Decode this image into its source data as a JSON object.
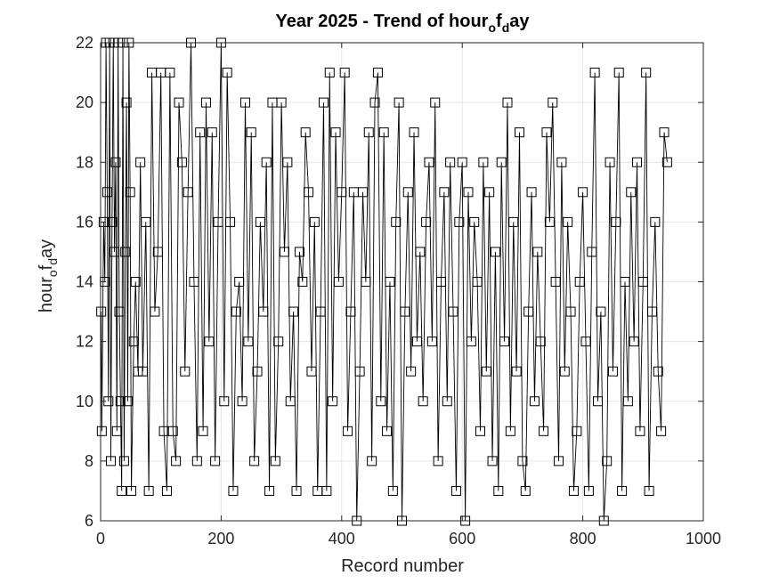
{
  "chart_data": {
    "type": "line",
    "title": "Year 2025 - Trend of hour_of_day",
    "title_parts": {
      "pre": "Year 2025 - Trend of hour",
      "sub1": "o",
      "mid": "f",
      "sub2": "d",
      "post": "ay"
    },
    "xlabel": "Record number",
    "ylabel": "hour_of_day",
    "ylabel_parts": {
      "pre": "hour",
      "sub1": "o",
      "mid": "f",
      "sub2": "d",
      "post": "ay"
    },
    "xlim": [
      0,
      1000
    ],
    "ylim": [
      6,
      22
    ],
    "xticks": [
      0,
      200,
      400,
      600,
      800,
      1000
    ],
    "yticks": [
      6,
      8,
      10,
      12,
      14,
      16,
      18,
      20,
      22
    ],
    "grid": true,
    "marker": "square",
    "series_color": "#000000",
    "n_points": 940,
    "sample_points": [
      {
        "x": 1,
        "y": 13
      },
      {
        "x": 2,
        "y": 9
      },
      {
        "x": 5,
        "y": 16
      },
      {
        "x": 7,
        "y": 14
      },
      {
        "x": 9,
        "y": 22
      },
      {
        "x": 11,
        "y": 17
      },
      {
        "x": 13,
        "y": 10
      },
      {
        "x": 15,
        "y": 22
      },
      {
        "x": 17,
        "y": 8
      },
      {
        "x": 19,
        "y": 16
      },
      {
        "x": 21,
        "y": 22
      },
      {
        "x": 23,
        "y": 15
      },
      {
        "x": 25,
        "y": 18
      },
      {
        "x": 27,
        "y": 9
      },
      {
        "x": 29,
        "y": 22
      },
      {
        "x": 31,
        "y": 13
      },
      {
        "x": 33,
        "y": 10
      },
      {
        "x": 35,
        "y": 7
      },
      {
        "x": 37,
        "y": 22
      },
      {
        "x": 39,
        "y": 8
      },
      {
        "x": 41,
        "y": 15
      },
      {
        "x": 43,
        "y": 20
      },
      {
        "x": 45,
        "y": 10
      },
      {
        "x": 47,
        "y": 22
      },
      {
        "x": 49,
        "y": 17
      },
      {
        "x": 51,
        "y": 7
      },
      {
        "x": 55,
        "y": 12
      },
      {
        "x": 58,
        "y": 14
      },
      {
        "x": 62,
        "y": 11
      },
      {
        "x": 66,
        "y": 18
      },
      {
        "x": 70,
        "y": 11
      },
      {
        "x": 75,
        "y": 16
      },
      {
        "x": 80,
        "y": 7
      },
      {
        "x": 85,
        "y": 21
      },
      {
        "x": 90,
        "y": 13
      },
      {
        "x": 95,
        "y": 15
      },
      {
        "x": 100,
        "y": 21
      },
      {
        "x": 105,
        "y": 9
      },
      {
        "x": 110,
        "y": 7
      },
      {
        "x": 115,
        "y": 21
      },
      {
        "x": 120,
        "y": 9
      },
      {
        "x": 125,
        "y": 8
      },
      {
        "x": 130,
        "y": 20
      },
      {
        "x": 135,
        "y": 18
      },
      {
        "x": 140,
        "y": 11
      },
      {
        "x": 145,
        "y": 17
      },
      {
        "x": 150,
        "y": 22
      },
      {
        "x": 155,
        "y": 14
      },
      {
        "x": 160,
        "y": 8
      },
      {
        "x": 165,
        "y": 19
      },
      {
        "x": 170,
        "y": 9
      },
      {
        "x": 175,
        "y": 20
      },
      {
        "x": 180,
        "y": 12
      },
      {
        "x": 185,
        "y": 19
      },
      {
        "x": 190,
        "y": 8
      },
      {
        "x": 195,
        "y": 16
      },
      {
        "x": 200,
        "y": 22
      },
      {
        "x": 205,
        "y": 10
      },
      {
        "x": 210,
        "y": 21
      },
      {
        "x": 215,
        "y": 16
      },
      {
        "x": 220,
        "y": 7
      },
      {
        "x": 225,
        "y": 13
      },
      {
        "x": 230,
        "y": 14
      },
      {
        "x": 235,
        "y": 10
      },
      {
        "x": 240,
        "y": 20
      },
      {
        "x": 245,
        "y": 12
      },
      {
        "x": 250,
        "y": 19
      },
      {
        "x": 255,
        "y": 8
      },
      {
        "x": 260,
        "y": 11
      },
      {
        "x": 265,
        "y": 16
      },
      {
        "x": 270,
        "y": 13
      },
      {
        "x": 275,
        "y": 18
      },
      {
        "x": 280,
        "y": 7
      },
      {
        "x": 285,
        "y": 20
      },
      {
        "x": 290,
        "y": 8
      },
      {
        "x": 295,
        "y": 12
      },
      {
        "x": 300,
        "y": 20
      },
      {
        "x": 305,
        "y": 15
      },
      {
        "x": 310,
        "y": 18
      },
      {
        "x": 315,
        "y": 10
      },
      {
        "x": 320,
        "y": 13
      },
      {
        "x": 325,
        "y": 7
      },
      {
        "x": 330,
        "y": 15
      },
      {
        "x": 335,
        "y": 14
      },
      {
        "x": 340,
        "y": 19
      },
      {
        "x": 345,
        "y": 17
      },
      {
        "x": 350,
        "y": 11
      },
      {
        "x": 355,
        "y": 16
      },
      {
        "x": 360,
        "y": 7
      },
      {
        "x": 365,
        "y": 13
      },
      {
        "x": 370,
        "y": 20
      },
      {
        "x": 375,
        "y": 7
      },
      {
        "x": 380,
        "y": 21
      },
      {
        "x": 385,
        "y": 10
      },
      {
        "x": 390,
        "y": 19
      },
      {
        "x": 395,
        "y": 14
      },
      {
        "x": 400,
        "y": 17
      },
      {
        "x": 405,
        "y": 21
      },
      {
        "x": 410,
        "y": 9
      },
      {
        "x": 415,
        "y": 13
      },
      {
        "x": 420,
        "y": 17
      },
      {
        "x": 425,
        "y": 6
      },
      {
        "x": 430,
        "y": 11
      },
      {
        "x": 435,
        "y": 17
      },
      {
        "x": 440,
        "y": 14
      },
      {
        "x": 445,
        "y": 19
      },
      {
        "x": 450,
        "y": 8
      },
      {
        "x": 455,
        "y": 20
      },
      {
        "x": 460,
        "y": 21
      },
      {
        "x": 465,
        "y": 10
      },
      {
        "x": 470,
        "y": 19
      },
      {
        "x": 475,
        "y": 9
      },
      {
        "x": 480,
        "y": 14
      },
      {
        "x": 485,
        "y": 7
      },
      {
        "x": 490,
        "y": 16
      },
      {
        "x": 495,
        "y": 20
      },
      {
        "x": 500,
        "y": 6
      },
      {
        "x": 505,
        "y": 13
      },
      {
        "x": 510,
        "y": 17
      },
      {
        "x": 515,
        "y": 11
      },
      {
        "x": 520,
        "y": 19
      },
      {
        "x": 525,
        "y": 12
      },
      {
        "x": 530,
        "y": 15
      },
      {
        "x": 535,
        "y": 10
      },
      {
        "x": 540,
        "y": 16
      },
      {
        "x": 545,
        "y": 18
      },
      {
        "x": 550,
        "y": 12
      },
      {
        "x": 555,
        "y": 20
      },
      {
        "x": 560,
        "y": 8
      },
      {
        "x": 565,
        "y": 14
      },
      {
        "x": 570,
        "y": 17
      },
      {
        "x": 575,
        "y": 10
      },
      {
        "x": 580,
        "y": 18
      },
      {
        "x": 585,
        "y": 13
      },
      {
        "x": 590,
        "y": 7
      },
      {
        "x": 595,
        "y": 16
      },
      {
        "x": 600,
        "y": 18
      },
      {
        "x": 605,
        "y": 6
      },
      {
        "x": 610,
        "y": 17
      },
      {
        "x": 615,
        "y": 12
      },
      {
        "x": 620,
        "y": 16
      },
      {
        "x": 625,
        "y": 14
      },
      {
        "x": 630,
        "y": 9
      },
      {
        "x": 635,
        "y": 18
      },
      {
        "x": 640,
        "y": 11
      },
      {
        "x": 645,
        "y": 17
      },
      {
        "x": 650,
        "y": 8
      },
      {
        "x": 655,
        "y": 15
      },
      {
        "x": 660,
        "y": 7
      },
      {
        "x": 665,
        "y": 18
      },
      {
        "x": 670,
        "y": 12
      },
      {
        "x": 675,
        "y": 20
      },
      {
        "x": 680,
        "y": 9
      },
      {
        "x": 685,
        "y": 16
      },
      {
        "x": 690,
        "y": 11
      },
      {
        "x": 695,
        "y": 19
      },
      {
        "x": 700,
        "y": 8
      },
      {
        "x": 705,
        "y": 7
      },
      {
        "x": 710,
        "y": 13
      },
      {
        "x": 715,
        "y": 17
      },
      {
        "x": 720,
        "y": 10
      },
      {
        "x": 725,
        "y": 15
      },
      {
        "x": 730,
        "y": 12
      },
      {
        "x": 735,
        "y": 9
      },
      {
        "x": 740,
        "y": 19
      },
      {
        "x": 745,
        "y": 16
      },
      {
        "x": 750,
        "y": 20
      },
      {
        "x": 755,
        "y": 14
      },
      {
        "x": 760,
        "y": 8
      },
      {
        "x": 765,
        "y": 18
      },
      {
        "x": 770,
        "y": 11
      },
      {
        "x": 775,
        "y": 16
      },
      {
        "x": 780,
        "y": 13
      },
      {
        "x": 785,
        "y": 7
      },
      {
        "x": 790,
        "y": 9
      },
      {
        "x": 795,
        "y": 14
      },
      {
        "x": 800,
        "y": 17
      },
      {
        "x": 805,
        "y": 12
      },
      {
        "x": 810,
        "y": 7
      },
      {
        "x": 815,
        "y": 15
      },
      {
        "x": 820,
        "y": 21
      },
      {
        "x": 825,
        "y": 10
      },
      {
        "x": 830,
        "y": 13
      },
      {
        "x": 835,
        "y": 6
      },
      {
        "x": 840,
        "y": 8
      },
      {
        "x": 845,
        "y": 18
      },
      {
        "x": 850,
        "y": 11
      },
      {
        "x": 855,
        "y": 16
      },
      {
        "x": 860,
        "y": 21
      },
      {
        "x": 865,
        "y": 7
      },
      {
        "x": 870,
        "y": 14
      },
      {
        "x": 875,
        "y": 10
      },
      {
        "x": 880,
        "y": 17
      },
      {
        "x": 885,
        "y": 12
      },
      {
        "x": 890,
        "y": 18
      },
      {
        "x": 895,
        "y": 9
      },
      {
        "x": 900,
        "y": 14
      },
      {
        "x": 905,
        "y": 21
      },
      {
        "x": 910,
        "y": 7
      },
      {
        "x": 915,
        "y": 13
      },
      {
        "x": 920,
        "y": 16
      },
      {
        "x": 925,
        "y": 11
      },
      {
        "x": 930,
        "y": 9
      },
      {
        "x": 935,
        "y": 19
      },
      {
        "x": 940,
        "y": 18
      }
    ]
  }
}
